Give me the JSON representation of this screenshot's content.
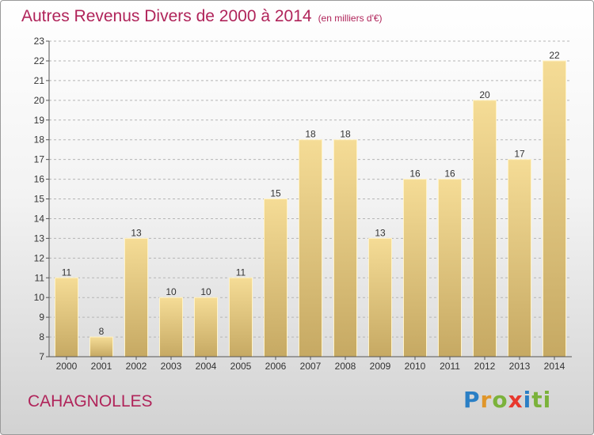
{
  "header": {
    "title": "Autres Revenus Divers de 2000 à 2014",
    "subtitle": "(en milliers d'€)"
  },
  "footer": {
    "place": "CAHAGNOLLES",
    "logo_letters": [
      "P",
      "r",
      "o",
      "x",
      "i",
      "ti"
    ]
  },
  "colors": {
    "title": "#b0245a",
    "bar_top": "#f5dc96",
    "bar_bottom": "#c6a963",
    "grid": "#b5b5b5"
  },
  "chart_data": {
    "type": "bar",
    "title": "Autres Revenus Divers de 2000 à 2014",
    "subtitle": "(en milliers d'€)",
    "categories": [
      "2000",
      "2001",
      "2002",
      "2003",
      "2004",
      "2005",
      "2006",
      "2007",
      "2008",
      "2009",
      "2010",
      "2011",
      "2012",
      "2013",
      "2014"
    ],
    "values": [
      11,
      8,
      13,
      10,
      10,
      11,
      15,
      18,
      18,
      13,
      16,
      16,
      20,
      17,
      22
    ],
    "ylim": [
      7,
      23
    ],
    "yticks": [
      7,
      8,
      9,
      10,
      11,
      12,
      13,
      14,
      15,
      16,
      17,
      18,
      19,
      20,
      21,
      22,
      23
    ],
    "grid": "horizontal dashed",
    "legend": "none"
  }
}
